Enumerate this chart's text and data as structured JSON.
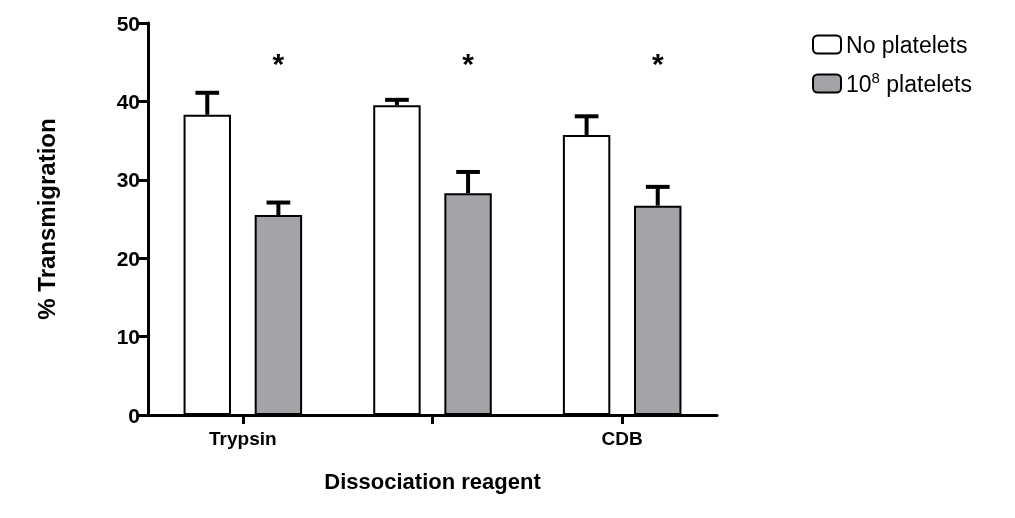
{
  "chart_data": {
    "type": "bar",
    "categories": [
      "Trypsin",
      null,
      "CDB"
    ],
    "xlabel": "Dissociation reagent",
    "ylabel": "% Transmigration",
    "ylim": [
      0,
      50
    ],
    "yticks": [
      0,
      10,
      20,
      30,
      40,
      50
    ],
    "grid": false,
    "legend": "top right",
    "series": [
      {
        "name": "No platelets",
        "color": "#ffffff",
        "values": [
          38.3,
          39.5,
          35.7
        ],
        "errors": [
          [
            38.3,
            41.1
          ],
          [
            39.5,
            40.2
          ],
          [
            35.7,
            38.1
          ]
        ]
      },
      {
        "name": "10$^{8}$ platelets",
        "color": "#a3a3a8",
        "values": [
          25.5,
          28.3,
          26.7
        ],
        "errors": [
          [
            25.5,
            27.1
          ],
          [
            28.3,
            31.0
          ],
          [
            26.7,
            29.1
          ]
        ]
      }
    ],
    "annotations": [
      "*",
      "*",
      "*"
    ]
  }
}
